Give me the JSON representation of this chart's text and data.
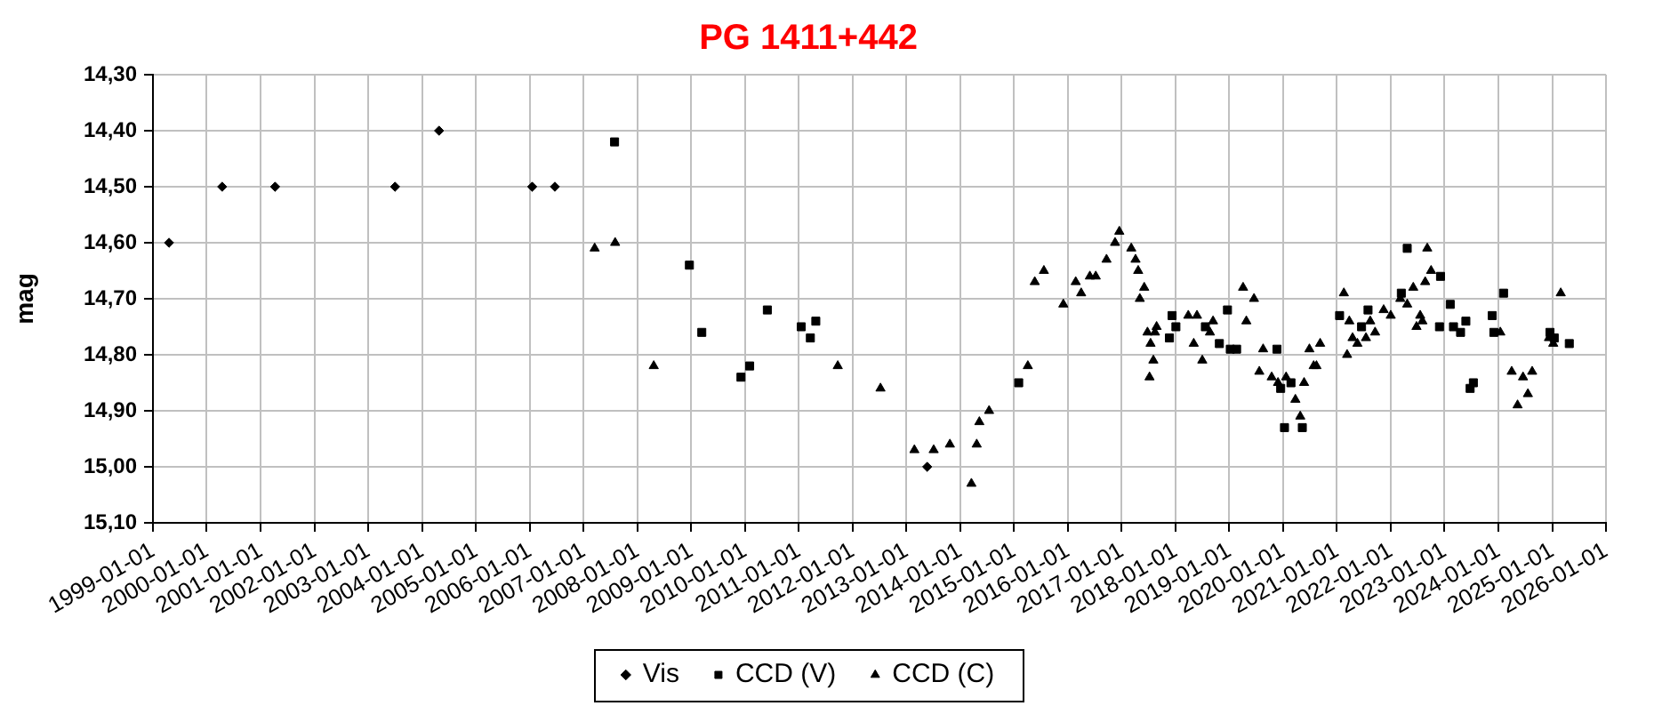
{
  "chart_data": {
    "type": "scatter",
    "title": "PG 1411+442",
    "ylabel": "mag",
    "xlim": [
      "1999-01-01",
      "2026-01-01"
    ],
    "xticks": [
      "1999-01-01",
      "2000-01-01",
      "2001-01-01",
      "2002-01-01",
      "2003-01-01",
      "2004-01-01",
      "2005-01-01",
      "2006-01-01",
      "2007-01-01",
      "2008-01-01",
      "2009-01-01",
      "2010-01-01",
      "2011-01-01",
      "2012-01-01",
      "2013-01-01",
      "2014-01-01",
      "2015-01-01",
      "2016-01-01",
      "2017-01-01",
      "2018-01-01",
      "2019-01-01",
      "2020-01-01",
      "2021-01-01",
      "2022-01-01",
      "2023-01-01",
      "2024-01-01",
      "2025-01-01",
      "2026-01-01"
    ],
    "ylim": [
      15.1,
      14.3
    ],
    "yticks": [
      {
        "value": 14.3,
        "label": "14,30"
      },
      {
        "value": 14.4,
        "label": "14,40"
      },
      {
        "value": 14.5,
        "label": "14,50"
      },
      {
        "value": 14.6,
        "label": "14,60"
      },
      {
        "value": 14.7,
        "label": "14,70"
      },
      {
        "value": 14.8,
        "label": "14,80"
      },
      {
        "value": 14.9,
        "label": "14,90"
      },
      {
        "value": 15.0,
        "label": "15,00"
      },
      {
        "value": 15.1,
        "label": "15,10"
      }
    ],
    "grid": true,
    "legend": "bottom",
    "series": [
      {
        "name": "Vis",
        "color": "#000000",
        "marker": "diamond",
        "x": [
          "1999-04-20",
          "2000-04-15",
          "2001-04-09",
          "2003-07-02",
          "2004-04-26",
          "2006-01-18",
          "2006-06-21",
          "2013-05-22"
        ],
        "values": [
          14.6,
          14.5,
          14.5,
          14.5,
          14.4,
          14.5,
          14.5,
          15.0
        ]
      },
      {
        "name": "CCD (V)",
        "color": "#000000",
        "marker": "square",
        "x": [
          "2007-07-31",
          "2008-12-20",
          "2009-03-14",
          "2009-12-05",
          "2010-02-02",
          "2010-06-02",
          "2011-01-18",
          "2011-03-21",
          "2011-04-27",
          "2015-02-02",
          "2017-11-21",
          "2017-12-09",
          "2018-01-04",
          "2018-07-23",
          "2018-10-26",
          "2018-12-20",
          "2019-01-08",
          "2019-02-20",
          "2019-11-21",
          "2019-12-16",
          "2020-01-11",
          "2020-02-24",
          "2020-05-11",
          "2021-01-19",
          "2021-06-17",
          "2021-07-31",
          "2022-03-14",
          "2022-04-23",
          "2022-11-28",
          "2022-12-05",
          "2023-02-09",
          "2023-03-03",
          "2023-04-20",
          "2023-05-26",
          "2023-06-24",
          "2023-07-16",
          "2023-11-21",
          "2023-12-02",
          "2024-02-06",
          "2024-12-17",
          "2025-01-15",
          "2025-04-27"
        ],
        "values": [
          14.42,
          14.64,
          14.76,
          14.84,
          14.82,
          14.72,
          14.75,
          14.77,
          14.74,
          14.85,
          14.77,
          14.73,
          14.75,
          14.75,
          14.78,
          14.72,
          14.79,
          14.79,
          14.79,
          14.86,
          14.93,
          14.85,
          14.93,
          14.73,
          14.75,
          14.72,
          14.69,
          14.61,
          14.75,
          14.66,
          14.71,
          14.75,
          14.76,
          14.74,
          14.86,
          14.85,
          14.73,
          14.76,
          14.69,
          14.76,
          14.77,
          14.78
        ]
      },
      {
        "name": "CCD (C)",
        "color": "#000000",
        "marker": "triangle",
        "x": [
          "2007-03-18",
          "2007-08-04",
          "2008-04-22",
          "2011-09-23",
          "2012-07-09",
          "2013-02-24",
          "2013-07-05",
          "2013-10-23",
          "2014-03-18",
          "2014-04-23",
          "2014-05-11",
          "2014-07-16",
          "2015-04-05",
          "2015-05-22",
          "2015-07-23",
          "2015-12-02",
          "2016-02-24",
          "2016-04-01",
          "2016-05-30",
          "2016-07-09",
          "2016-09-20",
          "2016-11-17",
          "2016-12-16",
          "2017-03-07",
          "2017-04-05",
          "2017-04-23",
          "2017-05-04",
          "2017-06-03",
          "2017-06-25",
          "2017-07-09",
          "2017-07-16",
          "2017-08-04",
          "2017-08-15",
          "2017-08-26",
          "2018-03-29",
          "2018-05-05",
          "2018-05-27",
          "2018-07-02",
          "2018-08-23",
          "2018-09-13",
          "2019-04-05",
          "2019-04-27",
          "2019-06-18",
          "2019-07-24",
          "2019-08-19",
          "2019-10-16",
          "2019-11-28",
          "2020-01-22",
          "2020-03-25",
          "2020-04-27",
          "2020-05-23",
          "2020-06-28",
          "2020-07-27",
          "2020-08-15",
          "2020-09-09",
          "2021-02-17",
          "2021-03-11",
          "2021-03-26",
          "2021-04-17",
          "2021-05-20",
          "2021-07-17",
          "2021-08-15",
          "2021-09-17",
          "2021-11-14",
          "2022-01-01",
          "2022-03-07",
          "2022-04-23",
          "2022-06-03",
          "2022-06-25",
          "2022-07-20",
          "2022-08-04",
          "2022-08-23",
          "2022-09-06",
          "2022-10-02",
          "2024-01-15",
          "2024-04-01",
          "2024-05-11",
          "2024-06-17",
          "2024-07-20",
          "2024-08-18",
          "2024-12-10",
          "2025-01-08",
          "2025-02-28"
        ],
        "values": [
          14.61,
          14.6,
          14.82,
          14.82,
          14.86,
          14.97,
          14.97,
          14.96,
          15.03,
          14.96,
          14.92,
          14.9,
          14.82,
          14.67,
          14.65,
          14.71,
          14.67,
          14.69,
          14.66,
          14.66,
          14.63,
          14.6,
          14.58,
          14.61,
          14.63,
          14.65,
          14.7,
          14.68,
          14.76,
          14.84,
          14.78,
          14.81,
          14.76,
          14.75,
          14.73,
          14.78,
          14.73,
          14.81,
          14.76,
          14.74,
          14.68,
          14.74,
          14.7,
          14.83,
          14.79,
          14.84,
          14.85,
          14.84,
          14.88,
          14.91,
          14.85,
          14.79,
          14.82,
          14.82,
          14.78,
          14.69,
          14.8,
          14.74,
          14.77,
          14.78,
          14.77,
          14.74,
          14.76,
          14.72,
          14.73,
          14.7,
          14.71,
          14.68,
          14.75,
          14.73,
          14.74,
          14.67,
          14.61,
          14.65,
          14.76,
          14.83,
          14.89,
          14.84,
          14.87,
          14.83,
          14.77,
          14.78,
          14.69
        ]
      }
    ]
  }
}
